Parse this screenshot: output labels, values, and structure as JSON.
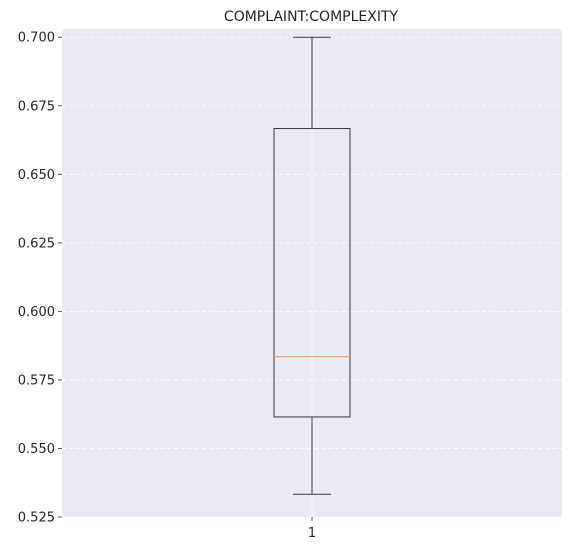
{
  "chart_data": {
    "type": "box",
    "title": "COMPLAINT:COMPLEXITY",
    "xlabel": "",
    "ylabel": "",
    "categories": [
      "1"
    ],
    "ylim": [
      0.525,
      0.703
    ],
    "yticks": [
      "0.525",
      "0.550",
      "0.575",
      "0.600",
      "0.625",
      "0.650",
      "0.675",
      "0.700"
    ],
    "boxes": [
      {
        "category": "1",
        "whisker_low": 0.5333,
        "q1": 0.5615,
        "median": 0.5835,
        "q3": 0.6667,
        "whisker_high": 0.7
      }
    ],
    "grid": true,
    "colors": {
      "background": "#eaeaf2",
      "grid": "#ffffff",
      "box_line": "#3a3a4a",
      "median": "#e8a07a",
      "text": "#262626"
    }
  }
}
